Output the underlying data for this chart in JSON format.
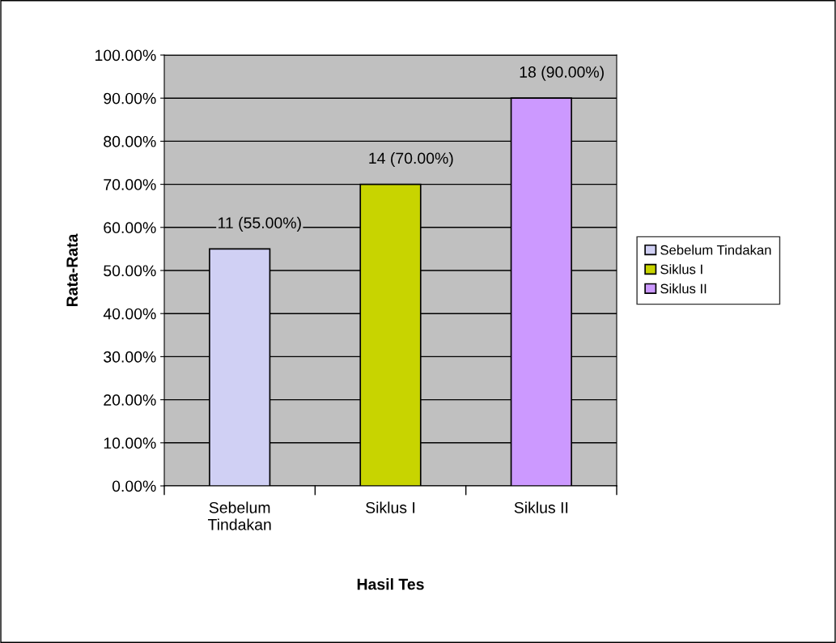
{
  "chart_data": {
    "type": "bar",
    "xlabel": "Hasil Tes",
    "ylabel": "Rata-Rata",
    "categories": [
      "Sebelum\nTindakan",
      "Siklus I",
      "Siklus II"
    ],
    "series": [
      {
        "name": "Sebelum Tindakan",
        "color": "#d0d0f4",
        "values": [
          55,
          null,
          null
        ],
        "value_labels": [
          "11 (55.00%)",
          null,
          null
        ]
      },
      {
        "name": "Siklus I",
        "color": "#c8d400",
        "values": [
          null,
          70,
          null
        ],
        "value_labels": [
          null,
          "14 (70.00%)",
          null
        ]
      },
      {
        "name": "Siklus II",
        "color": "#cc99ff",
        "values": [
          null,
          null,
          90
        ],
        "value_labels": [
          null,
          null,
          "18 (90.00%)"
        ]
      }
    ],
    "ylim": [
      0,
      100
    ],
    "yticks": [
      {
        "value": 0,
        "label": "0.00%"
      },
      {
        "value": 10,
        "label": "10.00%"
      },
      {
        "value": 20,
        "label": "20.00%"
      },
      {
        "value": 30,
        "label": "30.00%"
      },
      {
        "value": 40,
        "label": "40.00%"
      },
      {
        "value": 50,
        "label": "50.00%"
      },
      {
        "value": 60,
        "label": "60.00%"
      },
      {
        "value": 70,
        "label": "70.00%"
      },
      {
        "value": 80,
        "label": "80.00%"
      },
      {
        "value": 90,
        "label": "90.00%"
      },
      {
        "value": 100,
        "label": "100.00%"
      }
    ],
    "grid": "y",
    "legend": "right"
  }
}
